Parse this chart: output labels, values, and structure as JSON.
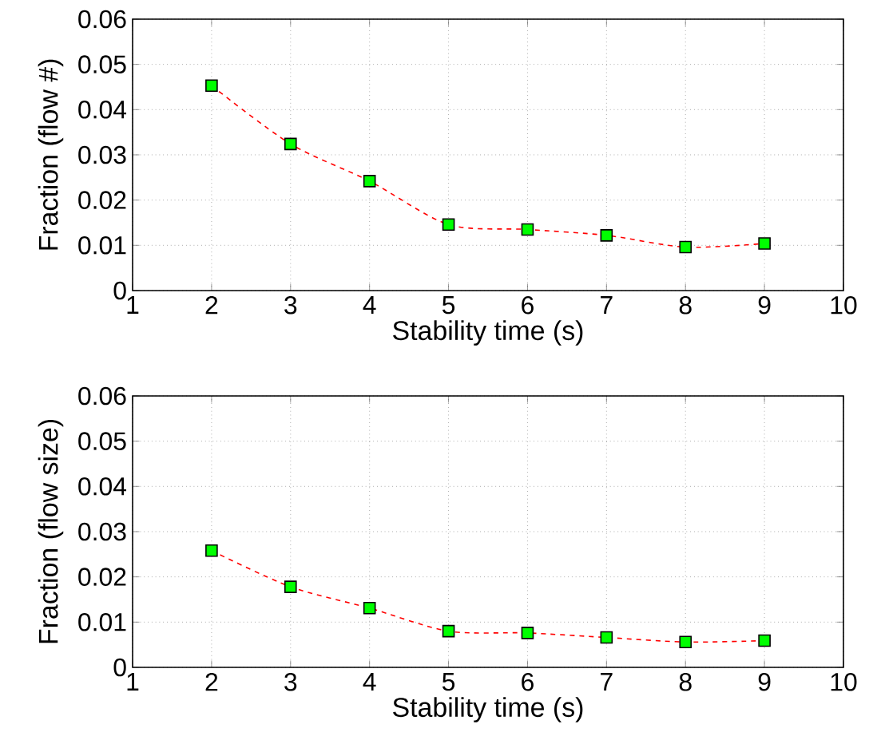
{
  "chart_data": [
    {
      "type": "line",
      "xlabel": "Stability time (s)",
      "ylabel": "Fraction (flow #)",
      "x": [
        2,
        3,
        4,
        5,
        6,
        7,
        8,
        9
      ],
      "series": [
        {
          "color": "#ff0000",
          "line_style": "dashed",
          "marker": "none",
          "values": [
            0.0453,
            0.0324,
            0.0242,
            0.0146,
            0.0135,
            0.0122,
            0.0096,
            0.0104
          ]
        },
        {
          "type": "scatter",
          "color": "#00ff00",
          "marker": "square",
          "values": [
            0.0453,
            0.0324,
            0.0242,
            0.0146,
            0.0135,
            0.0122,
            0.0096,
            0.0104
          ]
        }
      ],
      "xlim": [
        1,
        10
      ],
      "xticks": [
        1,
        2,
        3,
        4,
        5,
        6,
        7,
        8,
        9,
        10
      ],
      "ylim": [
        0,
        0.06
      ],
      "yticks": [
        0,
        0.01,
        0.02,
        0.03,
        0.04,
        0.05,
        0.06
      ],
      "grid": true
    },
    {
      "type": "line",
      "xlabel": "Stability time (s)",
      "ylabel": "Fraction (flow size)",
      "x": [
        2,
        3,
        4,
        5,
        6,
        7,
        8,
        9
      ],
      "series": [
        {
          "color": "#ff0000",
          "line_style": "dashed",
          "marker": "none",
          "values": [
            0.0258,
            0.0178,
            0.0131,
            0.008,
            0.0076,
            0.0066,
            0.0056,
            0.0059
          ]
        },
        {
          "type": "scatter",
          "color": "#00ff00",
          "marker": "square",
          "values": [
            0.0258,
            0.0178,
            0.0131,
            0.008,
            0.0076,
            0.0066,
            0.0056,
            0.0059
          ]
        }
      ],
      "xlim": [
        1,
        10
      ],
      "xticks": [
        1,
        2,
        3,
        4,
        5,
        6,
        7,
        8,
        9,
        10
      ],
      "ylim": [
        0,
        0.06
      ],
      "yticks": [
        0,
        0.01,
        0.02,
        0.03,
        0.04,
        0.05,
        0.06
      ],
      "grid": true
    }
  ]
}
